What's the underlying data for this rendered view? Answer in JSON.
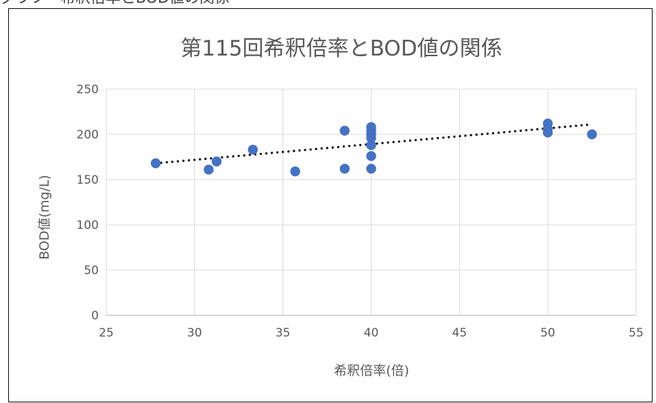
{
  "caption_fragment": "グラフ　希釈倍率とBOD値の関係",
  "chart_data": {
    "type": "scatter",
    "title": "第115回希釈倍率とBOD値の関係",
    "xlabel": "希釈倍率(倍)",
    "ylabel": "BOD値(mg/L)",
    "xlim": [
      25,
      55
    ],
    "ylim": [
      0,
      250
    ],
    "x_ticks": [
      "25",
      "30",
      "35",
      "40",
      "45",
      "50",
      "55"
    ],
    "y_ticks": [
      "0",
      "50",
      "100",
      "150",
      "200",
      "250"
    ],
    "grid": true,
    "legend": "none",
    "marker_color": "#4472C4",
    "trendline_color": "#000000",
    "trendline": {
      "type": "linear",
      "style": "dotted",
      "x": [
        27.8,
        52.5
      ],
      "y": [
        168,
        211
      ]
    },
    "points": [
      {
        "x": 27.8,
        "y": 168
      },
      {
        "x": 30.8,
        "y": 161
      },
      {
        "x": 31.25,
        "y": 170
      },
      {
        "x": 33.3,
        "y": 183
      },
      {
        "x": 35.7,
        "y": 159
      },
      {
        "x": 38.5,
        "y": 204
      },
      {
        "x": 38.5,
        "y": 162
      },
      {
        "x": 40,
        "y": 208
      },
      {
        "x": 40,
        "y": 204
      },
      {
        "x": 40,
        "y": 200
      },
      {
        "x": 40,
        "y": 196
      },
      {
        "x": 40,
        "y": 188
      },
      {
        "x": 40,
        "y": 176
      },
      {
        "x": 40,
        "y": 162
      },
      {
        "x": 50,
        "y": 212
      },
      {
        "x": 50,
        "y": 206
      },
      {
        "x": 50,
        "y": 202
      },
      {
        "x": 52.5,
        "y": 200
      }
    ]
  }
}
